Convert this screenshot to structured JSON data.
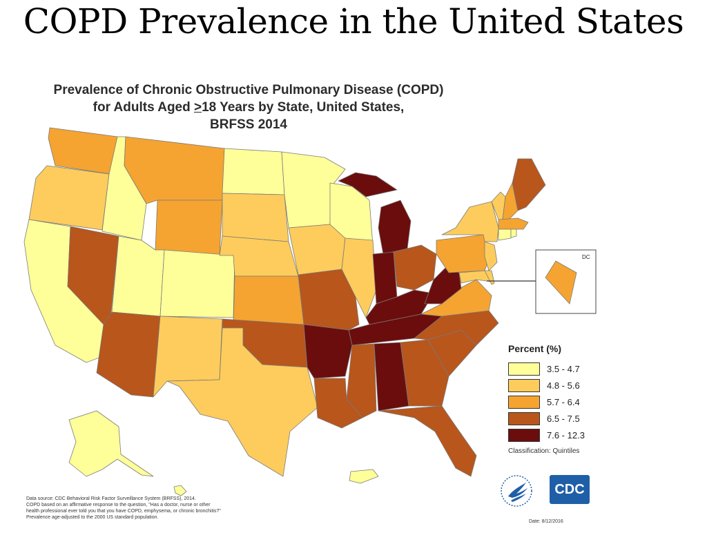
{
  "slide_title": "COPD Prevalence in the United States",
  "map": {
    "title_lines": [
      "Prevalence of Chronic Obstructive Pulmonary Disease (COPD)",
      "BRFSS 2014"
    ],
    "title_line2_pre": "for Adults Aged ",
    "title_line2_sym": ">",
    "title_line2_post": "18 Years by State, United States,",
    "inset_label": "DC"
  },
  "legend": {
    "title": "Percent (%)",
    "items": [
      {
        "label": "3.5 - 4.7",
        "color": "#ffff99"
      },
      {
        "label": "4.8 - 5.6",
        "color": "#fdcc5c"
      },
      {
        "label": "5.7 - 6.4",
        "color": "#f5a431"
      },
      {
        "label": "6.5 - 7.5",
        "color": "#b8561c"
      },
      {
        "label": "7.6 - 12.3",
        "color": "#6b0d0d"
      }
    ],
    "classification": "Classification: Quintiles"
  },
  "logos": {
    "cdc": "CDC",
    "hhs": "hhs-eagle-icon"
  },
  "footnote": [
    "Data source: CDC Behavioral Risk Factor Surveillance System (BRFSS), 2014.",
    "COPD based on an affirmative response to the question, \"Has a doctor, nurse or other",
    "health professional ever told you that you have COPD, emphysema, or chronic bronchitis?\"",
    "Prevalence age-adjusted to the 2000 US standard population."
  ],
  "date": "Date: 8/12/2016"
}
